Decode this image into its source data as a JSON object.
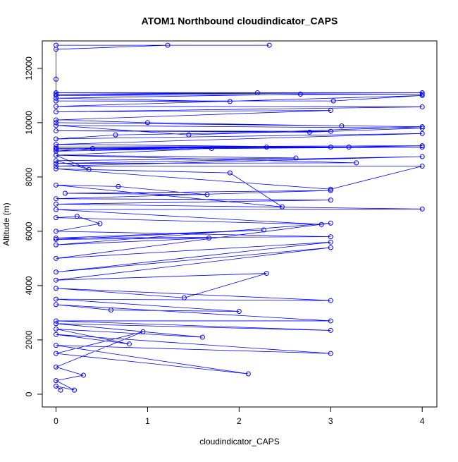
{
  "chart_data": {
    "type": "line",
    "title": "ATOM1 Northbound cloudindicator_CAPS",
    "x_label": "cloudindicator_CAPS",
    "y_label": "Altitude (m)",
    "xlim": [
      -0.15,
      4.16
    ],
    "ylim": [
      -470,
      13010
    ],
    "xticks": [
      0,
      1,
      2,
      3,
      4
    ],
    "yticks": [
      0,
      2000,
      4000,
      6000,
      8000,
      10000,
      12000
    ],
    "series": [
      {
        "color": "#0000ff",
        "x": [
          0,
          2.33,
          1.22,
          0,
          0,
          0,
          4,
          0,
          2.2,
          0,
          4,
          2.67,
          0,
          1.9,
          0,
          3.03,
          4,
          0,
          4,
          0,
          3,
          0,
          1.0,
          3.12,
          0,
          4,
          1.45,
          0,
          4,
          2.77,
          0,
          3,
          0.65,
          0,
          4,
          0,
          3,
          0,
          4,
          3.2,
          0,
          2.3,
          0,
          4,
          0.4,
          0,
          1.7,
          0,
          2.62,
          0,
          0.36,
          0,
          3.28,
          0,
          4,
          0,
          4,
          3,
          0,
          1.9,
          2.47,
          0,
          0.68,
          1.65,
          0.1,
          3,
          0,
          3,
          0,
          4,
          0,
          2.9,
          0,
          0.23,
          0.48,
          0,
          3,
          0,
          2.27,
          0,
          1.67,
          0,
          3,
          0,
          3,
          0,
          3,
          0,
          2.3,
          1.4,
          0,
          3,
          0,
          2.0,
          0.6,
          0,
          3,
          0,
          3,
          0,
          1.6,
          0,
          0.8,
          0,
          3,
          0,
          2.1,
          0,
          0.95,
          0,
          0.3,
          0,
          0.2,
          0,
          0.05
        ],
        "values": [
          12850,
          12850,
          12850,
          12700,
          11600,
          11100,
          11100,
          11050,
          11100,
          11000,
          11050,
          11050,
          10900,
          10780,
          10800,
          10800,
          11000,
          10600,
          10580,
          10400,
          10450,
          10100,
          10000,
          9880,
          10000,
          9850,
          9550,
          9900,
          9800,
          9650,
          9700,
          9680,
          9550,
          9400,
          9600,
          9200,
          9100,
          9100,
          9150,
          9100,
          9050,
          9100,
          9000,
          9100,
          9050,
          8950,
          9050,
          8800,
          8700,
          8600,
          8280,
          8800,
          8520,
          8500,
          8750,
          8400,
          8400,
          7550,
          8300,
          8150,
          6900,
          7700,
          7650,
          7350,
          7400,
          7500,
          7200,
          7150,
          7000,
          6820,
          6800,
          6250,
          6500,
          6550,
          6280,
          6000,
          5800,
          5750,
          6050,
          5700,
          5750,
          5500,
          6300,
          5000,
          5600,
          4500,
          5400,
          4200,
          4450,
          3550,
          3900,
          3450,
          3500,
          3050,
          3100,
          3300,
          2700,
          2700,
          2350,
          2600,
          2100,
          2400,
          1850,
          2200,
          1500,
          1800,
          750,
          1500,
          2300,
          1000,
          700,
          500,
          150,
          300,
          150
        ]
      }
    ]
  }
}
